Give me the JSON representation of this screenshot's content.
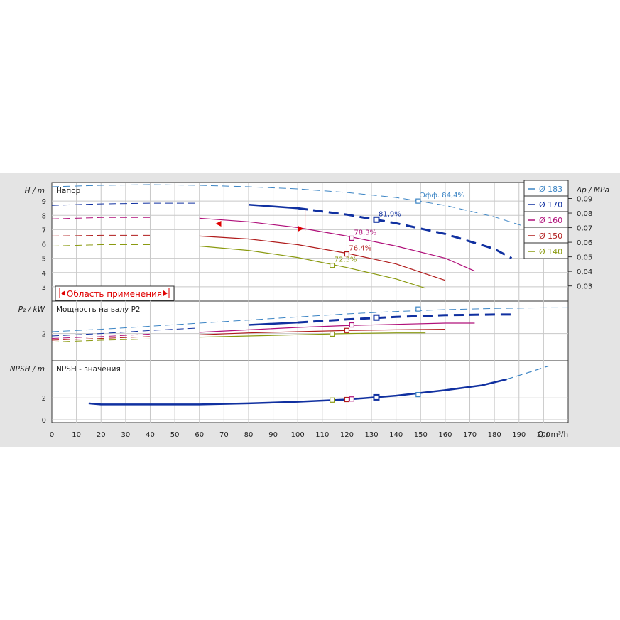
{
  "chart_data": {
    "type": "line",
    "x_axis": {
      "label": "Q / m³/h",
      "range": [
        0,
        210
      ],
      "ticks": [
        0,
        10,
        20,
        30,
        40,
        50,
        60,
        70,
        80,
        90,
        100,
        110,
        120,
        130,
        140,
        150,
        160,
        170,
        180,
        190,
        200
      ]
    },
    "panels": [
      {
        "id": "head",
        "title": "Напор",
        "ylabel": "H / m",
        "ylim": [
          2,
          10
        ],
        "yticks": [
          3,
          4,
          5,
          6,
          7,
          8,
          9
        ],
        "secondary_axis": {
          "label": "Δp / MPa",
          "ticks": [
            "0,03",
            "0,04",
            "0,05",
            "0,06",
            "0,07",
            "0,08",
            "0,09"
          ],
          "values": [
            0.03,
            0.04,
            0.05,
            0.06,
            0.07,
            0.08,
            0.09
          ]
        },
        "series": [
          {
            "name": "Ø 183",
            "color": "#3b84c4",
            "points": [
              [
                0,
                10.0
              ],
              [
                20,
                10.1
              ],
              [
                40,
                10.15
              ],
              [
                60,
                10.1
              ],
              [
                80,
                10.0
              ],
              [
                100,
                9.85
              ],
              [
                120,
                9.6
              ],
              [
                140,
                9.25
              ],
              [
                160,
                8.7
              ],
              [
                180,
                7.9
              ],
              [
                200,
                6.8
              ],
              [
                210,
                6.0
              ]
            ]
          },
          {
            "name": "Ø 170",
            "color": "#1030a0",
            "points": [
              [
                0,
                8.7
              ],
              [
                20,
                8.8
              ],
              [
                40,
                8.85
              ],
              [
                60,
                8.85
              ],
              [
                80,
                8.75
              ],
              [
                100,
                8.5
              ],
              [
                120,
                8.05
              ],
              [
                140,
                7.45
              ],
              [
                160,
                6.7
              ],
              [
                180,
                5.65
              ],
              [
                187,
                5.0
              ]
            ]
          },
          {
            "name": "Ø 160",
            "color": "#b0107a",
            "points": [
              [
                0,
                7.75
              ],
              [
                20,
                7.85
              ],
              [
                40,
                7.85
              ],
              [
                60,
                7.8
              ],
              [
                80,
                7.55
              ],
              [
                100,
                7.15
              ],
              [
                120,
                6.55
              ],
              [
                140,
                5.85
              ],
              [
                160,
                5.0
              ],
              [
                172,
                4.1
              ]
            ]
          },
          {
            "name": "Ø 150",
            "color": "#b01c1c",
            "points": [
              [
                0,
                6.55
              ],
              [
                20,
                6.6
              ],
              [
                40,
                6.6
              ],
              [
                60,
                6.55
              ],
              [
                80,
                6.35
              ],
              [
                100,
                5.95
              ],
              [
                120,
                5.35
              ],
              [
                140,
                4.6
              ],
              [
                160,
                3.45
              ]
            ]
          },
          {
            "name": "Ø 140",
            "color": "#8a9a10",
            "points": [
              [
                0,
                5.85
              ],
              [
                20,
                5.95
              ],
              [
                40,
                5.95
              ],
              [
                60,
                5.85
              ],
              [
                80,
                5.55
              ],
              [
                100,
                5.05
              ],
              [
                120,
                4.35
              ],
              [
                140,
                3.55
              ],
              [
                152,
                2.9
              ]
            ]
          }
        ],
        "operating_range": {
          "label": "Область применения",
          "x_start": 66,
          "x_end": 103
        },
        "efficiency_points": [
          {
            "series": "Ø 183",
            "x": 149,
            "y": 9.0,
            "label": "Эфф.  84,4%"
          },
          {
            "series": "Ø 170",
            "x": 132,
            "y": 7.7,
            "label": "81,9%"
          },
          {
            "series": "Ø 160",
            "x": 122,
            "y": 6.4,
            "label": "78,3%"
          },
          {
            "series": "Ø 150",
            "x": 120,
            "y": 5.3,
            "label": "76,4%"
          },
          {
            "series": "Ø 140",
            "x": 114,
            "y": 4.5,
            "label": "72,3%"
          }
        ]
      },
      {
        "id": "power",
        "title": "Мощность на валу P2",
        "ylabel": "P₂ / kW",
        "ylim": [
          0,
          4.3
        ],
        "yticks": [
          2
        ],
        "series": [
          {
            "name": "Ø 183",
            "color": "#3b84c4",
            "points": [
              [
                0,
                2.15
              ],
              [
                20,
                2.35
              ],
              [
                40,
                2.6
              ],
              [
                60,
                2.85
              ],
              [
                80,
                3.1
              ],
              [
                100,
                3.35
              ],
              [
                120,
                3.6
              ],
              [
                140,
                3.8
              ],
              [
                160,
                3.95
              ],
              [
                180,
                4.05
              ],
              [
                200,
                4.1
              ],
              [
                210,
                4.1
              ]
            ]
          },
          {
            "name": "Ø 170",
            "color": "#1030a0",
            "points": [
              [
                0,
                1.8
              ],
              [
                20,
                2.0
              ],
              [
                40,
                2.25
              ],
              [
                60,
                2.45
              ],
              [
                80,
                2.7
              ],
              [
                100,
                2.9
              ],
              [
                120,
                3.15
              ],
              [
                140,
                3.35
              ],
              [
                160,
                3.5
              ],
              [
                180,
                3.55
              ],
              [
                187,
                3.55
              ]
            ]
          },
          {
            "name": "Ø 160",
            "color": "#b0107a",
            "points": [
              [
                0,
                1.6
              ],
              [
                20,
                1.75
              ],
              [
                40,
                1.95
              ],
              [
                60,
                2.1
              ],
              [
                80,
                2.3
              ],
              [
                100,
                2.5
              ],
              [
                120,
                2.65
              ],
              [
                140,
                2.75
              ],
              [
                160,
                2.85
              ],
              [
                172,
                2.85
              ]
            ]
          },
          {
            "name": "Ø 150",
            "color": "#b01c1c",
            "points": [
              [
                0,
                1.45
              ],
              [
                20,
                1.6
              ],
              [
                40,
                1.75
              ],
              [
                60,
                1.9
              ],
              [
                80,
                2.05
              ],
              [
                100,
                2.15
              ],
              [
                120,
                2.25
              ],
              [
                140,
                2.3
              ],
              [
                160,
                2.35
              ]
            ]
          },
          {
            "name": "Ø 140",
            "color": "#8a9a10",
            "points": [
              [
                0,
                1.3
              ],
              [
                20,
                1.45
              ],
              [
                40,
                1.55
              ],
              [
                60,
                1.7
              ],
              [
                80,
                1.8
              ],
              [
                100,
                1.9
              ],
              [
                120,
                2.0
              ],
              [
                140,
                2.05
              ],
              [
                152,
                2.05
              ]
            ]
          }
        ],
        "markers": [
          {
            "series": "Ø 183",
            "x": 149,
            "y": 4.0
          },
          {
            "series": "Ø 170",
            "x": 132,
            "y": 3.3
          },
          {
            "series": "Ø 160",
            "x": 122,
            "y": 2.7
          },
          {
            "series": "Ø 150",
            "x": 120,
            "y": 2.25
          },
          {
            "series": "Ø 140",
            "x": 114,
            "y": 1.95
          }
        ]
      },
      {
        "id": "npsh",
        "title": "NPSH - значения",
        "ylabel": "NPSH / m",
        "ylim": [
          0,
          5
        ],
        "yticks": [
          0,
          2
        ],
        "series": [
          {
            "name": "NPSH",
            "color": "#1030a0",
            "points": [
              [
                15,
                1.5
              ],
              [
                20,
                1.4
              ],
              [
                40,
                1.4
              ],
              [
                60,
                1.4
              ],
              [
                80,
                1.5
              ],
              [
                100,
                1.65
              ],
              [
                120,
                1.85
              ],
              [
                140,
                2.2
              ],
              [
                160,
                2.7
              ],
              [
                175,
                3.15
              ],
              [
                185,
                3.7
              ]
            ]
          },
          {
            "name": "NPSH (Ø 183)",
            "color": "#3b84c4",
            "points": [
              [
                185,
                3.7
              ],
              [
                195,
                4.4
              ],
              [
                202,
                4.9
              ]
            ]
          }
        ],
        "markers": [
          {
            "series": "Ø 183",
            "x": 149,
            "y": 2.3
          },
          {
            "series": "Ø 170",
            "x": 132,
            "y": 2.05
          },
          {
            "series": "Ø 160",
            "x": 122,
            "y": 1.9
          },
          {
            "series": "Ø 150",
            "x": 120,
            "y": 1.85
          },
          {
            "series": "Ø 140",
            "x": 114,
            "y": 1.8
          }
        ]
      }
    ],
    "legend": {
      "placement": "top-right",
      "items": [
        {
          "label": "Ø 183",
          "color": "#3b84c4"
        },
        {
          "label": "Ø 170",
          "color": "#1030a0"
        },
        {
          "label": "Ø 160",
          "color": "#b0107a"
        },
        {
          "label": "Ø 150",
          "color": "#b01c1c"
        },
        {
          "label": "Ø 140",
          "color": "#8a9a10"
        }
      ]
    }
  }
}
